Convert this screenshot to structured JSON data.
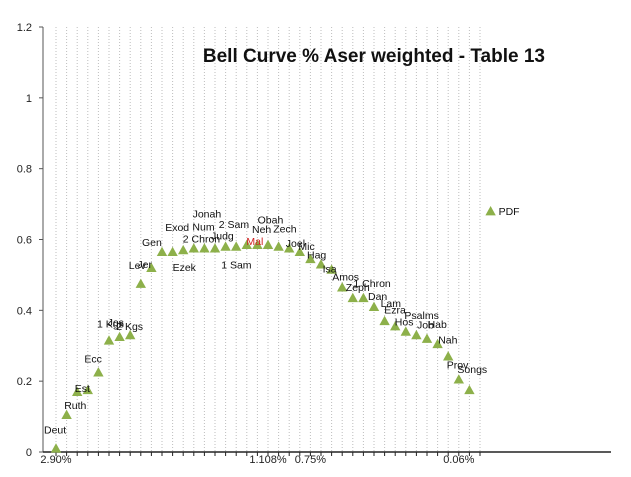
{
  "chart_data": {
    "type": "scatter",
    "title": "Bell Curve % Aser weighted - Table 13",
    "xlabel": "",
    "ylabel": "",
    "ylim": [
      0,
      1.2
    ],
    "y_ticks": [
      "0",
      "0.2",
      "0.4",
      "0.6",
      "0.8",
      "1",
      "1.2"
    ],
    "x_tick_labels": [
      {
        "text": "2.90%",
        "x": 1,
        "color": "#222222"
      },
      {
        "text": "1.108%",
        "x": 21,
        "color": "#d02020"
      },
      {
        "text": "0.75%",
        "x": 25,
        "color": "#222222"
      },
      {
        "text": "0.06%",
        "x": 39,
        "color": "#222222"
      }
    ],
    "grid": true,
    "marker_color": "#8db04a",
    "highlight_color": "#d02020",
    "points": [
      {
        "label": "Deut",
        "x": 1,
        "y": 0.01
      },
      {
        "label": "",
        "x": 2,
        "y": 0.105
      },
      {
        "label": "Ruth",
        "x": 3,
        "y": 0.17
      },
      {
        "label": "Est",
        "x": 4,
        "y": 0.175
      },
      {
        "label": "Ecc",
        "x": 5,
        "y": 0.225
      },
      {
        "label": "1 Kgs",
        "x": 6,
        "y": 0.315
      },
      {
        "label": "Jos",
        "x": 7,
        "y": 0.325
      },
      {
        "label": "2 Kgs",
        "x": 8,
        "y": 0.33
      },
      {
        "label": "Lev",
        "x": 9,
        "y": 0.475
      },
      {
        "label": "Jer",
        "x": 10,
        "y": 0.52
      },
      {
        "label": "Gen",
        "x": 11,
        "y": 0.565
      },
      {
        "label": "Ezek",
        "x": 12,
        "y": 0.565
      },
      {
        "label": "Exod",
        "x": 13,
        "y": 0.57
      },
      {
        "label": "2 Chron",
        "x": 14,
        "y": 0.575
      },
      {
        "label": "Num",
        "x": 15,
        "y": 0.575
      },
      {
        "label": "Judg",
        "x": 16,
        "y": 0.575
      },
      {
        "label": "Jonah",
        "x": 17,
        "y": 0.58
      },
      {
        "label": "1 Sam",
        "x": 18,
        "y": 0.58
      },
      {
        "label": "2 Sam",
        "x": 19,
        "y": 0.585
      },
      {
        "label": "Mal",
        "x": 20,
        "y": 0.585,
        "highlight": true
      },
      {
        "label": "Neh",
        "x": 21,
        "y": 0.585
      },
      {
        "label": "Obah",
        "x": 22,
        "y": 0.58
      },
      {
        "label": "Zech",
        "x": 23,
        "y": 0.575
      },
      {
        "label": "Joel",
        "x": 24,
        "y": 0.565
      },
      {
        "label": "Mic",
        "x": 25,
        "y": 0.545
      },
      {
        "label": "Hag",
        "x": 26,
        "y": 0.53
      },
      {
        "label": "Isa",
        "x": 27,
        "y": 0.515
      },
      {
        "label": "Amos",
        "x": 28,
        "y": 0.465
      },
      {
        "label": "Zeph",
        "x": 29,
        "y": 0.435
      },
      {
        "label": "1 Chron",
        "x": 30,
        "y": 0.435
      },
      {
        "label": "Dan",
        "x": 31,
        "y": 0.41
      },
      {
        "label": "Lam",
        "x": 32,
        "y": 0.37
      },
      {
        "label": "Ezra",
        "x": 33,
        "y": 0.355
      },
      {
        "label": "Hos",
        "x": 34,
        "y": 0.34
      },
      {
        "label": "Psalms",
        "x": 35,
        "y": 0.33
      },
      {
        "label": "Job",
        "x": 36,
        "y": 0.32
      },
      {
        "label": "Hab",
        "x": 37,
        "y": 0.305
      },
      {
        "label": "Nah",
        "x": 38,
        "y": 0.27
      },
      {
        "label": "Prov",
        "x": 39,
        "y": 0.205
      },
      {
        "label": "Songs",
        "x": 40,
        "y": 0.175
      },
      {
        "label": "PDF",
        "x": 42,
        "y": 0.68
      }
    ]
  }
}
